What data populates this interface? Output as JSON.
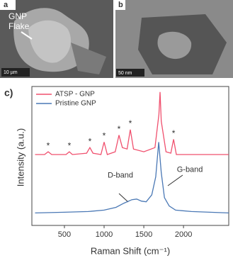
{
  "panels": {
    "a": {
      "label": "a",
      "annotation": [
        "GNP",
        "Flake"
      ],
      "scale_bar": "10 µm"
    },
    "b": {
      "label": "b",
      "scale_bar": "50 nm"
    },
    "c": {
      "label": "c)"
    }
  },
  "chart_data": {
    "type": "line",
    "xlabel": "Raman Shift (cm⁻¹)",
    "ylabel": "Intensity (a.u.)",
    "xlim": [
      90,
      2570
    ],
    "ylim": [
      0,
      100
    ],
    "xticks": [
      500,
      1000,
      1500,
      2000
    ],
    "legend": "top-left",
    "series": [
      {
        "name": "ATSP - GNP",
        "color": "#f0506e",
        "x": [
          130,
          250,
          295,
          340,
          520,
          562,
          600,
          780,
          821,
          860,
          960,
          1000,
          1040,
          1140,
          1187,
          1230,
          1290,
          1330,
          1370,
          1500,
          1640,
          1690,
          1705,
          1720,
          1780,
          1840,
          1875,
          1910,
          2000,
          2200,
          2400,
          2570
        ],
        "values": [
          51,
          51,
          53,
          51,
          51,
          53,
          51,
          52,
          56,
          52,
          51,
          60,
          51,
          53,
          65,
          56,
          55,
          69,
          55,
          53,
          56,
          80,
          96,
          75,
          53,
          52,
          62,
          51,
          51,
          51,
          51,
          51
        ]
      },
      {
        "name": "Pristine GNP",
        "color": "#4a78b5",
        "x": [
          130,
          500,
          800,
          1000,
          1150,
          1250,
          1350,
          1410,
          1470,
          1530,
          1600,
          1650,
          1688,
          1720,
          1760,
          1820,
          1900,
          2100,
          2570
        ],
        "values": [
          9,
          9.5,
          10,
          11,
          13,
          16,
          18.5,
          19,
          17.5,
          17,
          22,
          35,
          60,
          38,
          20,
          14,
          11,
          10,
          9
        ]
      }
    ],
    "annotations": [
      {
        "text": "*",
        "x": 295,
        "y": 57
      },
      {
        "text": "*",
        "x": 562,
        "y": 57
      },
      {
        "text": "*",
        "x": 821,
        "y": 60
      },
      {
        "text": "*",
        "x": 1000,
        "y": 64
      },
      {
        "text": "*",
        "x": 1187,
        "y": 69
      },
      {
        "text": "*",
        "x": 1330,
        "y": 73
      },
      {
        "text": "*",
        "x": 1875,
        "y": 66
      },
      {
        "text": "D-band",
        "x": 1205,
        "y": 36
      },
      {
        "text": "G-band",
        "x": 2080,
        "y": 40
      }
    ]
  }
}
